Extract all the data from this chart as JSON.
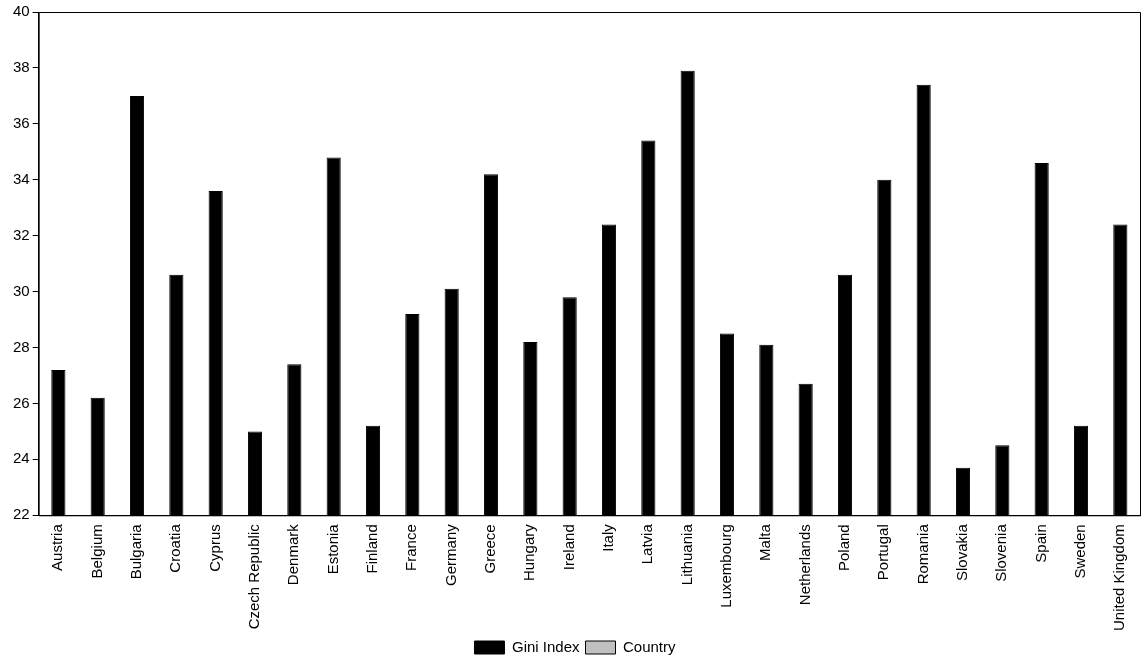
{
  "chart_data": {
    "type": "bar",
    "categories": [
      "Austria",
      "Belgium",
      "Bulgaria",
      "Croatia",
      "Cyprus",
      "Czech Republic",
      "Denmark",
      "Estonia",
      "Finland",
      "France",
      "Germany",
      "Greece",
      "Hungary",
      "Ireland",
      "Italy",
      "Latvia",
      "Lithuania",
      "Luxembourg",
      "Malta",
      "Netherlands",
      "Poland",
      "Portugal",
      "Romania",
      "Slovakia",
      "Slovenia",
      "Spain",
      "Sweden",
      "United Kingdom"
    ],
    "series": [
      {
        "name": "Gini Index",
        "color": "#000000",
        "values": [
          27.2,
          26.2,
          37.0,
          30.6,
          33.6,
          25.0,
          27.4,
          34.8,
          25.2,
          29.2,
          30.1,
          34.2,
          28.2,
          29.8,
          32.4,
          35.4,
          37.9,
          28.5,
          28.1,
          26.7,
          30.6,
          34.0,
          37.4,
          23.7,
          24.5,
          34.6,
          25.2,
          32.4
        ]
      },
      {
        "name": "Country",
        "color": "#c0c0c0",
        "values": [
          null,
          null,
          null,
          null,
          null,
          null,
          null,
          null,
          null,
          null,
          null,
          null,
          null,
          null,
          null,
          null,
          null,
          null,
          null,
          null,
          null,
          null,
          null,
          null,
          null,
          null,
          null,
          null
        ]
      }
    ],
    "ylim": [
      22,
      40
    ],
    "yticks": [
      22,
      24,
      26,
      28,
      30,
      32,
      34,
      36,
      38,
      40
    ],
    "grid": false,
    "legend": "bottom"
  }
}
